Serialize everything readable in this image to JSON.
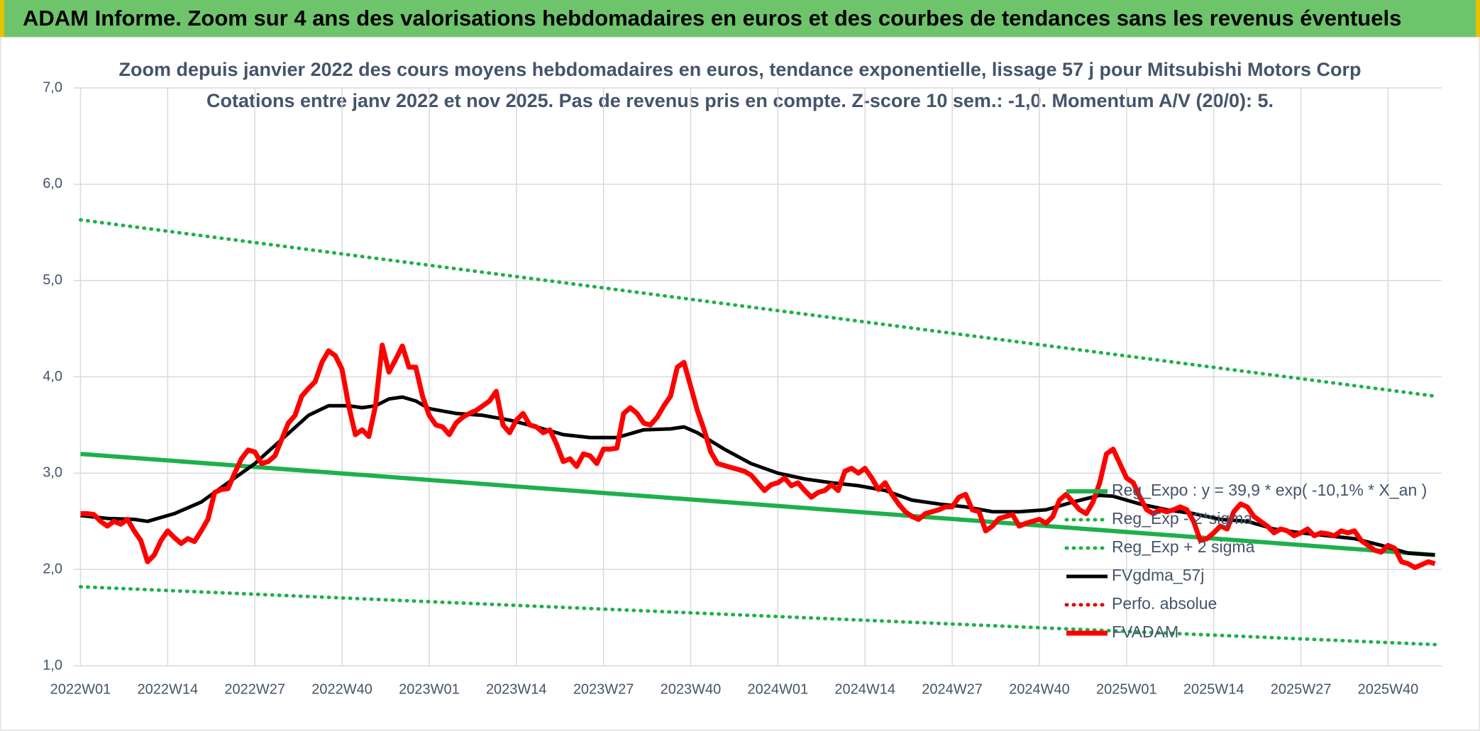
{
  "header": {
    "title": "ADAM Informe. Zoom sur 4 ans des valorisations hebdomadaires en euros et des courbes de tendances sans les revenus éventuels"
  },
  "chart_data": {
    "type": "line",
    "title": "Zoom depuis janvier 2022 des cours moyens hebdomadaires en euros, tendance exponentielle, lissage 57 j pour Mitsubishi Motors Corp",
    "subtitle": "Cotations entre janv 2022 et nov 2025. Pas de revenus pris en compte. Z-score 10 sem.: -1,0. Momentum A/V (20/0): 5.",
    "xlim": [
      -1,
      203
    ],
    "xticks": [
      {
        "value": 0,
        "label": "2022W01"
      },
      {
        "value": 13,
        "label": "2022W14"
      },
      {
        "value": 26,
        "label": "2022W27"
      },
      {
        "value": 39,
        "label": "2022W40"
      },
      {
        "value": 52,
        "label": "2023W01"
      },
      {
        "value": 65,
        "label": "2023W14"
      },
      {
        "value": 78,
        "label": "2023W27"
      },
      {
        "value": 91,
        "label": "2023W40"
      },
      {
        "value": 104,
        "label": "2024W01"
      },
      {
        "value": 117,
        "label": "2024W14"
      },
      {
        "value": 130,
        "label": "2024W27"
      },
      {
        "value": 143,
        "label": "2024W40"
      },
      {
        "value": 156,
        "label": "2025W01"
      },
      {
        "value": 169,
        "label": "2025W14"
      },
      {
        "value": 182,
        "label": "2025W27"
      },
      {
        "value": 195,
        "label": "2025W40"
      }
    ],
    "ylim": [
      1,
      7
    ],
    "yticks": [
      {
        "value": 1,
        "label": "1,0"
      },
      {
        "value": 2,
        "label": "2,0"
      },
      {
        "value": 3,
        "label": "3,0"
      },
      {
        "value": 4,
        "label": "4,0"
      },
      {
        "value": 5,
        "label": "5,0"
      },
      {
        "value": 6,
        "label": "6,0"
      },
      {
        "value": 7,
        "label": "7,0"
      }
    ],
    "grid": true,
    "series": [
      {
        "name": "Reg_Expo : y = 39,9 * exp( -10,1% *  X_an )",
        "color": "#1db04b",
        "style": "solid",
        "x": [
          0,
          202
        ],
        "values": [
          3.2,
          2.15
        ]
      },
      {
        "name": "Reg_Exp - 2*sigma",
        "color": "#1db04b",
        "style": "dotted",
        "x": [
          0,
          202
        ],
        "values": [
          1.82,
          1.22
        ]
      },
      {
        "name": "Reg_Exp + 2 sigma",
        "color": "#1db04b",
        "style": "dotted",
        "x": [
          0,
          202
        ],
        "values": [
          5.63,
          3.8
        ]
      },
      {
        "name": "FVgdma_57j",
        "color": "#000000",
        "style": "solid",
        "x": [
          0,
          4,
          8,
          10,
          14,
          18,
          22,
          26,
          30,
          34,
          37,
          40,
          42,
          44,
          46,
          48,
          50,
          52,
          56,
          60,
          64,
          68,
          72,
          76,
          80,
          84,
          88,
          90,
          92,
          96,
          100,
          104,
          108,
          112,
          116,
          120,
          124,
          128,
          132,
          136,
          140,
          144,
          148,
          152,
          154,
          158,
          162,
          166,
          170,
          174,
          178,
          182,
          186,
          190,
          194,
          198,
          202
        ],
        "values": [
          2.56,
          2.53,
          2.52,
          2.5,
          2.58,
          2.7,
          2.9,
          3.1,
          3.35,
          3.6,
          3.7,
          3.7,
          3.68,
          3.7,
          3.77,
          3.79,
          3.75,
          3.67,
          3.62,
          3.6,
          3.55,
          3.48,
          3.4,
          3.37,
          3.37,
          3.45,
          3.46,
          3.48,
          3.42,
          3.25,
          3.1,
          3.0,
          2.94,
          2.9,
          2.87,
          2.82,
          2.72,
          2.68,
          2.65,
          2.6,
          2.6,
          2.62,
          2.7,
          2.77,
          2.76,
          2.68,
          2.62,
          2.58,
          2.52,
          2.5,
          2.42,
          2.38,
          2.35,
          2.32,
          2.25,
          2.17,
          2.15
        ]
      },
      {
        "name": "Perfo. absolue",
        "color": "#e00000",
        "style": "dotted",
        "x": [],
        "values": []
      },
      {
        "name": "FVADAM",
        "color": "#ff0000",
        "style": "thick",
        "x": [
          0,
          1,
          2,
          3,
          4,
          5,
          6,
          7,
          8,
          9,
          10,
          11,
          12,
          13,
          14,
          15,
          16,
          17,
          18,
          19,
          20,
          21,
          22,
          23,
          24,
          25,
          26,
          27,
          28,
          29,
          30,
          31,
          32,
          33,
          34,
          35,
          36,
          37,
          38,
          39,
          40,
          41,
          42,
          43,
          44,
          45,
          46,
          47,
          48,
          49,
          50,
          51,
          52,
          53,
          54,
          55,
          56,
          57,
          58,
          59,
          60,
          61,
          62,
          63,
          64,
          65,
          66,
          67,
          68,
          69,
          70,
          71,
          72,
          73,
          74,
          75,
          76,
          77,
          78,
          79,
          80,
          81,
          82,
          83,
          84,
          85,
          86,
          87,
          88,
          89,
          90,
          91,
          92,
          93,
          94,
          95,
          96,
          97,
          98,
          99,
          100,
          101,
          102,
          103,
          104,
          105,
          106,
          107,
          108,
          109,
          110,
          111,
          112,
          113,
          114,
          115,
          116,
          117,
          118,
          119,
          120,
          121,
          122,
          123,
          124,
          125,
          126,
          127,
          128,
          129,
          130,
          131,
          132,
          133,
          134,
          135,
          136,
          137,
          138,
          139,
          140,
          141,
          142,
          143,
          144,
          145,
          146,
          147,
          148,
          149,
          150,
          151,
          152,
          153,
          154,
          155,
          156,
          157,
          158,
          159,
          160,
          161,
          162,
          163,
          164,
          165,
          166,
          167,
          168,
          169,
          170,
          171,
          172,
          173,
          174,
          175,
          176,
          177,
          178,
          179,
          180,
          181,
          182,
          183,
          184,
          185,
          186,
          187,
          188,
          189,
          190,
          191,
          192,
          193,
          194,
          195,
          196,
          197,
          198,
          199,
          200,
          201,
          202
        ],
        "values": [
          2.58,
          2.58,
          2.57,
          2.5,
          2.45,
          2.5,
          2.47,
          2.52,
          2.4,
          2.3,
          2.08,
          2.15,
          2.3,
          2.4,
          2.33,
          2.27,
          2.32,
          2.29,
          2.4,
          2.52,
          2.8,
          2.83,
          2.84,
          3.0,
          3.15,
          3.24,
          3.22,
          3.1,
          3.12,
          3.18,
          3.35,
          3.52,
          3.6,
          3.8,
          3.88,
          3.95,
          4.15,
          4.27,
          4.22,
          4.08,
          3.7,
          3.4,
          3.45,
          3.38,
          3.7,
          4.33,
          4.05,
          4.18,
          4.32,
          4.1,
          4.1,
          3.8,
          3.6,
          3.5,
          3.48,
          3.4,
          3.52,
          3.58,
          3.62,
          3.65,
          3.7,
          3.75,
          3.85,
          3.5,
          3.42,
          3.55,
          3.62,
          3.5,
          3.48,
          3.42,
          3.45,
          3.3,
          3.12,
          3.15,
          3.07,
          3.2,
          3.18,
          3.1,
          3.25,
          3.25,
          3.26,
          3.62,
          3.68,
          3.62,
          3.52,
          3.5,
          3.58,
          3.7,
          3.8,
          4.1,
          4.15,
          3.9,
          3.65,
          3.45,
          3.22,
          3.1,
          3.08,
          3.06,
          3.04,
          3.02,
          2.98,
          2.9,
          2.82,
          2.88,
          2.9,
          2.95,
          2.87,
          2.9,
          2.82,
          2.75,
          2.8,
          2.82,
          2.88,
          2.82,
          3.02,
          3.05,
          3.0,
          3.05,
          2.95,
          2.83,
          2.9,
          2.78,
          2.68,
          2.6,
          2.55,
          2.52,
          2.58,
          2.6,
          2.62,
          2.65,
          2.65,
          2.75,
          2.78,
          2.62,
          2.6,
          2.4,
          2.45,
          2.53,
          2.55,
          2.57,
          2.45,
          2.48,
          2.5,
          2.52,
          2.48,
          2.55,
          2.72,
          2.78,
          2.7,
          2.62,
          2.58,
          2.7,
          2.9,
          3.2,
          3.25,
          3.1,
          2.95,
          2.9,
          2.75,
          2.62,
          2.58,
          2.62,
          2.6,
          2.62,
          2.65,
          2.62,
          2.5,
          2.3,
          2.32,
          2.38,
          2.45,
          2.42,
          2.6,
          2.68,
          2.65,
          2.55,
          2.5,
          2.45,
          2.38,
          2.42,
          2.4,
          2.35,
          2.38,
          2.42,
          2.35,
          2.38,
          2.37,
          2.35,
          2.4,
          2.38,
          2.4,
          2.3,
          2.25,
          2.2,
          2.18,
          2.25,
          2.22,
          2.08,
          2.06,
          2.02,
          2.05,
          2.08,
          2.06
        ]
      }
    ]
  }
}
